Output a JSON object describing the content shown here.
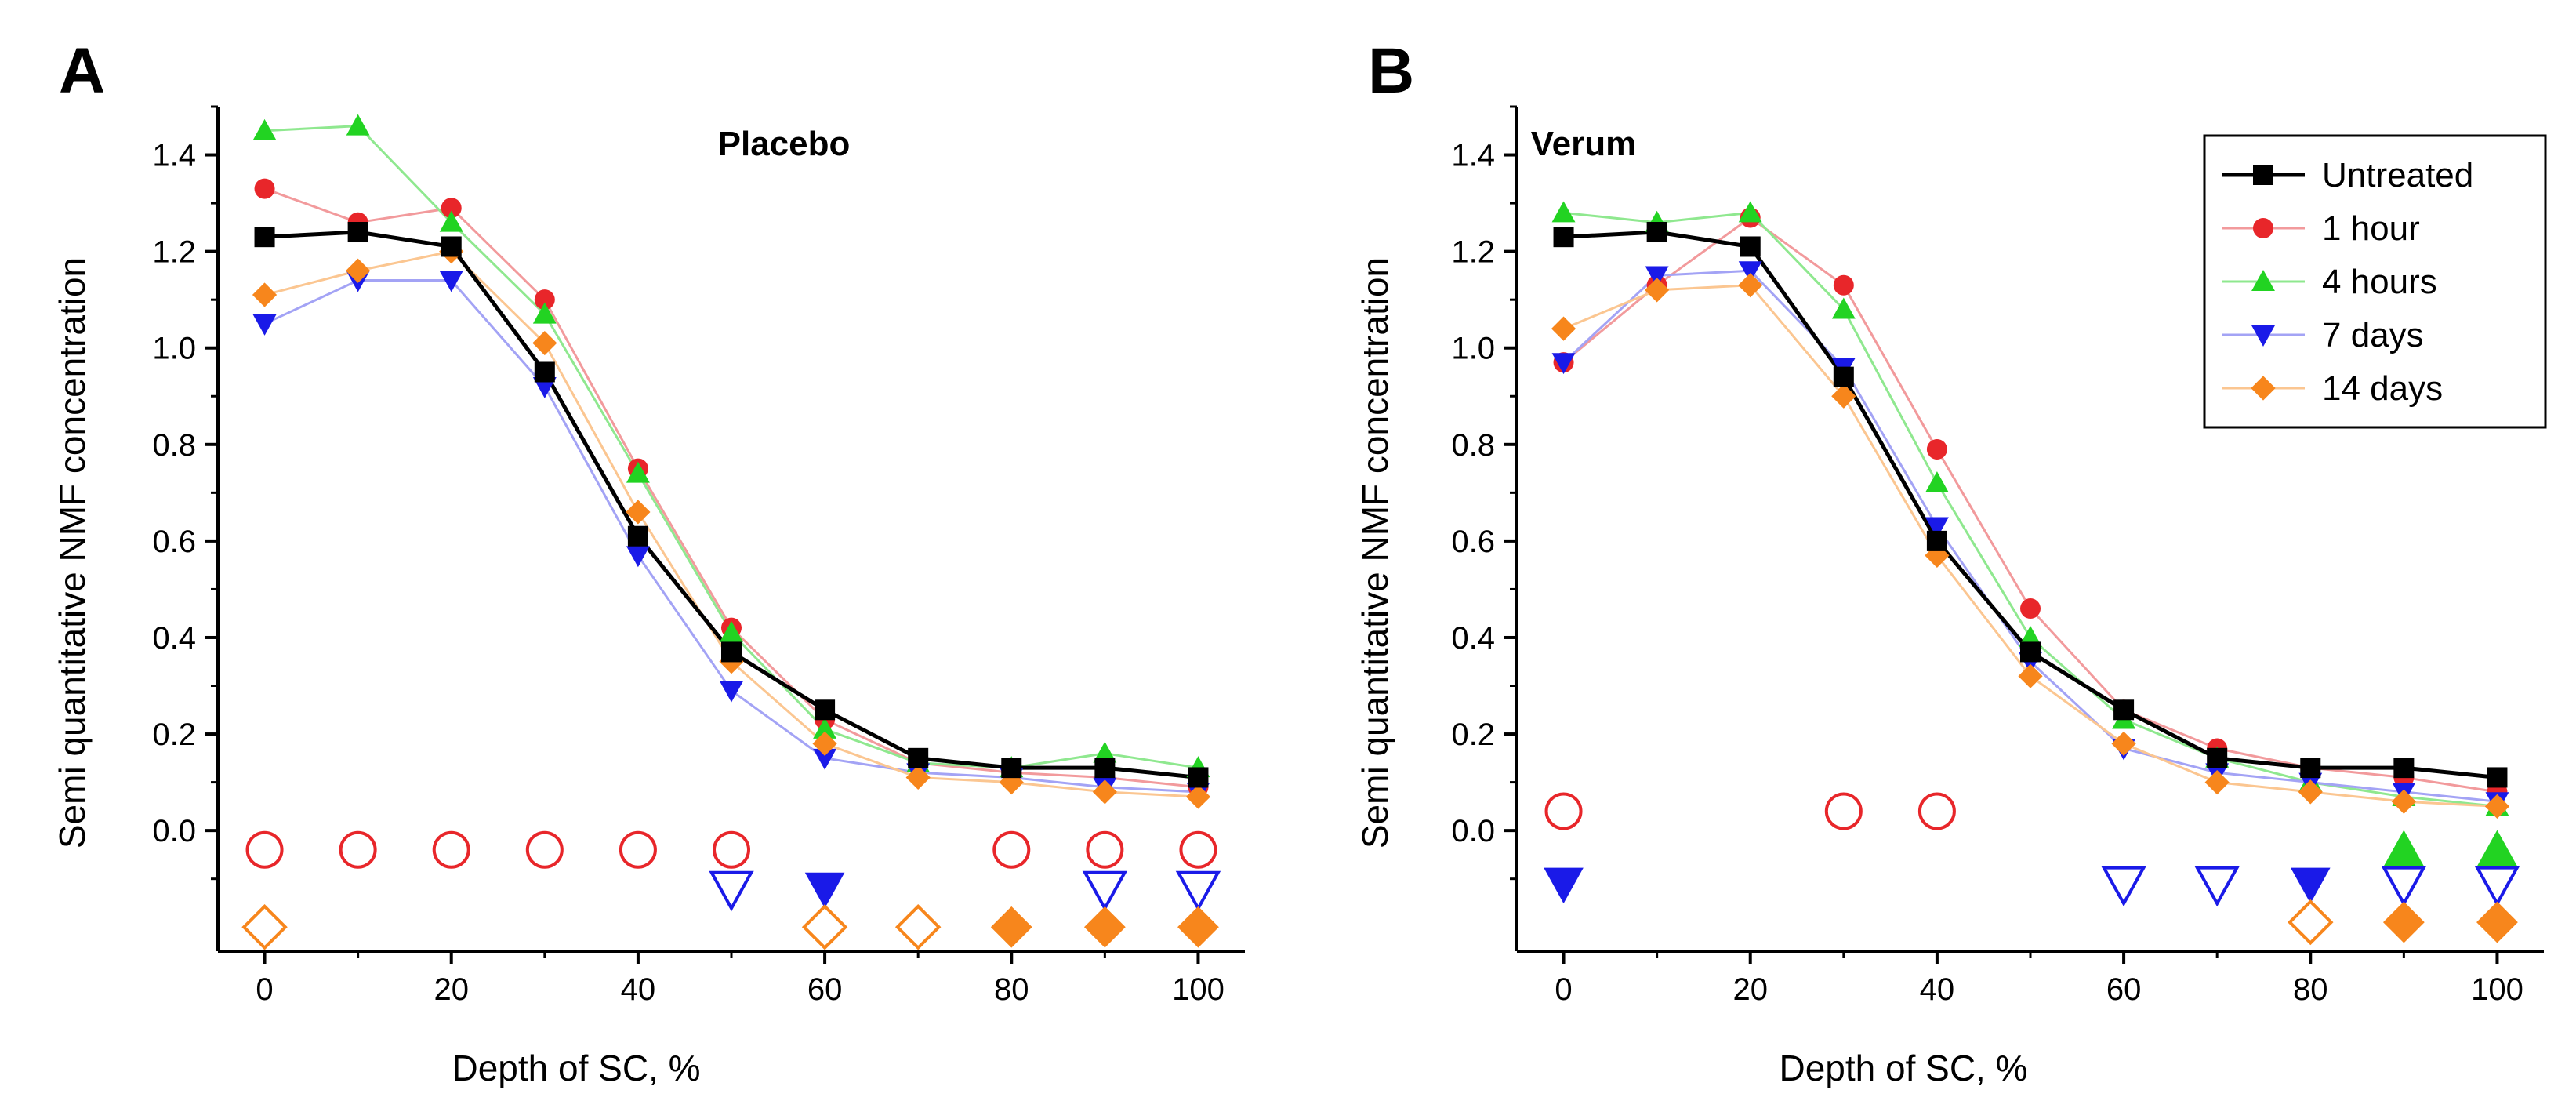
{
  "chart_data": [
    {
      "type": "line",
      "panel_label": "A",
      "title": "Placebo",
      "xlabel": "Depth of SC, %",
      "ylabel": "Semi quantitative NMF concentration",
      "xlim": [
        -5,
        105
      ],
      "ylim": [
        -0.25,
        1.5
      ],
      "xticks": [
        0,
        20,
        40,
        60,
        80,
        100
      ],
      "yticks": [
        0.0,
        0.2,
        0.4,
        0.6,
        0.8,
        1.0,
        1.2,
        1.4
      ],
      "xtick_labels": [
        "0",
        "20",
        "40",
        "60",
        "80",
        "100"
      ],
      "ytick_labels": [
        "0.0",
        "0.2",
        "0.4",
        "0.6",
        "0.8",
        "1.0",
        "1.2",
        "1.4"
      ],
      "x": [
        0,
        10,
        20,
        30,
        40,
        50,
        60,
        70,
        80,
        90,
        100
      ],
      "series": [
        {
          "name": "1 hour",
          "key": "1h",
          "color": "#e8262a",
          "line_color": "#f29a9c",
          "marker": "circle",
          "values": [
            1.33,
            1.26,
            1.29,
            1.1,
            0.75,
            0.42,
            0.23,
            0.14,
            0.12,
            0.11,
            0.09
          ]
        },
        {
          "name": "4 hours",
          "key": "4h",
          "color": "#22d322",
          "line_color": "#8fe88f",
          "marker": "triangle-up",
          "values": [
            1.45,
            1.46,
            1.26,
            1.07,
            0.74,
            0.41,
            0.21,
            0.14,
            0.13,
            0.16,
            0.13
          ]
        },
        {
          "name": "7 days",
          "key": "7d",
          "color": "#1a1ae8",
          "line_color": "#a3a3f5",
          "marker": "triangle-down",
          "values": [
            1.05,
            1.14,
            1.14,
            0.92,
            0.57,
            0.29,
            0.15,
            0.12,
            0.11,
            0.09,
            0.08
          ]
        },
        {
          "name": "14 days",
          "key": "14d",
          "color": "#f7861c",
          "line_color": "#fbc691",
          "marker": "diamond",
          "values": [
            1.11,
            1.16,
            1.2,
            1.01,
            0.66,
            0.35,
            0.18,
            0.11,
            0.1,
            0.08,
            0.07
          ]
        },
        {
          "name": "Untreated",
          "key": "untreated",
          "color": "#000000",
          "line_color": "#000000",
          "marker": "square",
          "values": [
            1.23,
            1.24,
            1.21,
            0.95,
            0.61,
            0.37,
            0.25,
            0.15,
            0.13,
            0.13,
            0.11
          ]
        }
      ],
      "significance_rows": [
        {
          "series": "1 hour",
          "y": -0.04,
          "points": [
            {
              "x": 0,
              "filled": false
            },
            {
              "x": 10,
              "filled": false
            },
            {
              "x": 20,
              "filled": false
            },
            {
              "x": 30,
              "filled": false
            },
            {
              "x": 40,
              "filled": false
            },
            {
              "x": 50,
              "filled": false
            },
            {
              "x": 80,
              "filled": false
            },
            {
              "x": 90,
              "filled": false
            },
            {
              "x": 100,
              "filled": false
            }
          ]
        },
        {
          "series": "7 days",
          "y": -0.12,
          "points": [
            {
              "x": 50,
              "filled": false
            },
            {
              "x": 60,
              "filled": true
            },
            {
              "x": 90,
              "filled": false
            },
            {
              "x": 100,
              "filled": false
            }
          ]
        },
        {
          "series": "14 days",
          "y": -0.2,
          "points": [
            {
              "x": 0,
              "filled": false
            },
            {
              "x": 60,
              "filled": false
            },
            {
              "x": 70,
              "filled": false
            },
            {
              "x": 80,
              "filled": true
            },
            {
              "x": 90,
              "filled": true
            },
            {
              "x": 100,
              "filled": true
            }
          ]
        }
      ]
    },
    {
      "type": "line",
      "panel_label": "B",
      "title": "Verum",
      "xlabel": "Depth of SC, %",
      "ylabel": "Semi quantitative NMF concentration",
      "xlim": [
        -5,
        105
      ],
      "ylim": [
        -0.25,
        1.5
      ],
      "xticks": [
        0,
        20,
        40,
        60,
        80,
        100
      ],
      "yticks": [
        0.0,
        0.2,
        0.4,
        0.6,
        0.8,
        1.0,
        1.2,
        1.4
      ],
      "xtick_labels": [
        "0",
        "20",
        "40",
        "60",
        "80",
        "100"
      ],
      "ytick_labels": [
        "0.0",
        "0.2",
        "0.4",
        "0.6",
        "0.8",
        "1.0",
        "1.2",
        "1.4"
      ],
      "x": [
        0,
        10,
        20,
        30,
        40,
        50,
        60,
        70,
        80,
        90,
        100
      ],
      "legend": {
        "position": "top-right",
        "entries": [
          "Untreated",
          "1 hour",
          "4 hours",
          "7 days",
          "14 days"
        ]
      },
      "series": [
        {
          "name": "1 hour",
          "key": "1h",
          "color": "#e8262a",
          "line_color": "#f29a9c",
          "marker": "circle",
          "values": [
            0.97,
            1.13,
            1.27,
            1.13,
            0.79,
            0.46,
            0.25,
            0.17,
            0.13,
            0.11,
            0.08
          ]
        },
        {
          "name": "4 hours",
          "key": "4h",
          "color": "#22d322",
          "line_color": "#8fe88f",
          "marker": "triangle-up",
          "values": [
            1.28,
            1.26,
            1.28,
            1.08,
            0.72,
            0.4,
            0.23,
            0.15,
            0.1,
            0.07,
            0.05
          ]
        },
        {
          "name": "7 days",
          "key": "7d",
          "color": "#1a1ae8",
          "line_color": "#a3a3f5",
          "marker": "triangle-down",
          "values": [
            0.97,
            1.15,
            1.16,
            0.96,
            0.63,
            0.35,
            0.17,
            0.12,
            0.1,
            0.08,
            0.06
          ]
        },
        {
          "name": "14 days",
          "key": "14d",
          "color": "#f7861c",
          "line_color": "#fbc691",
          "marker": "diamond",
          "values": [
            1.04,
            1.12,
            1.13,
            0.9,
            0.57,
            0.32,
            0.18,
            0.1,
            0.08,
            0.06,
            0.05
          ]
        },
        {
          "name": "Untreated",
          "key": "untreated",
          "color": "#000000",
          "line_color": "#000000",
          "marker": "square",
          "values": [
            1.23,
            1.24,
            1.21,
            0.94,
            0.6,
            0.37,
            0.25,
            0.15,
            0.13,
            0.13,
            0.11
          ]
        }
      ],
      "significance_rows": [
        {
          "series": "1 hour",
          "y": 0.04,
          "points": [
            {
              "x": 0,
              "filled": false
            },
            {
              "x": 30,
              "filled": false
            },
            {
              "x": 40,
              "filled": false
            }
          ]
        },
        {
          "series": "4 hours",
          "y": -0.04,
          "points": [
            {
              "x": 90,
              "filled": true
            },
            {
              "x": 100,
              "filled": true
            }
          ]
        },
        {
          "series": "7 days",
          "y": -0.11,
          "points": [
            {
              "x": 0,
              "filled": true
            },
            {
              "x": 60,
              "filled": false
            },
            {
              "x": 70,
              "filled": false
            },
            {
              "x": 80,
              "filled": true
            },
            {
              "x": 90,
              "filled": false
            },
            {
              "x": 100,
              "filled": false
            }
          ]
        },
        {
          "series": "14 days",
          "y": -0.19,
          "points": [
            {
              "x": 80,
              "filled": false
            },
            {
              "x": 90,
              "filled": true
            },
            {
              "x": 100,
              "filled": true
            }
          ]
        }
      ]
    }
  ]
}
